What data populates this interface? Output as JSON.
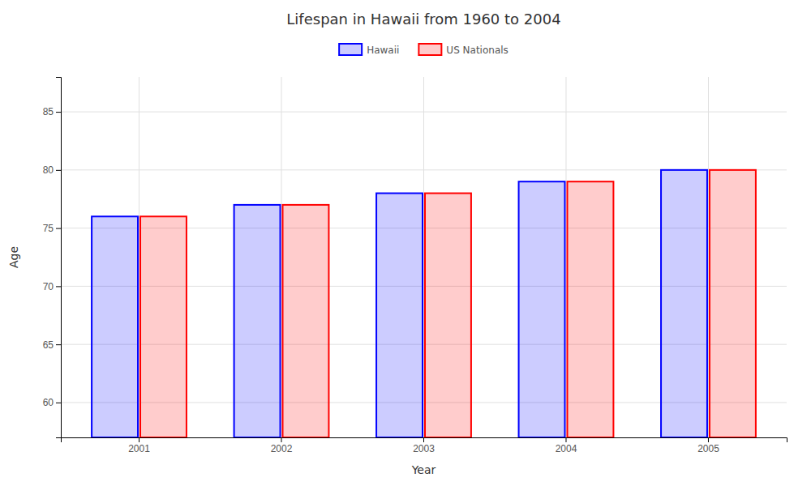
{
  "chart_data": {
    "type": "bar",
    "title": "Lifespan in Hawaii from 1960 to 2004",
    "x_label": "Year",
    "y_label": "Age",
    "categories": [
      "2001",
      "2002",
      "2003",
      "2004",
      "2005"
    ],
    "series": [
      {
        "name": "Hawaii",
        "color": "#0000ff",
        "values": [
          76,
          77,
          78,
          79,
          80
        ]
      },
      {
        "name": "US Nationals",
        "color": "#ff0000",
        "values": [
          76,
          77,
          78,
          79,
          80
        ]
      }
    ],
    "ylim": [
      57,
      88
    ],
    "yticks": [
      60,
      65,
      70,
      75,
      80,
      85
    ],
    "grid": true,
    "legend": "top"
  }
}
